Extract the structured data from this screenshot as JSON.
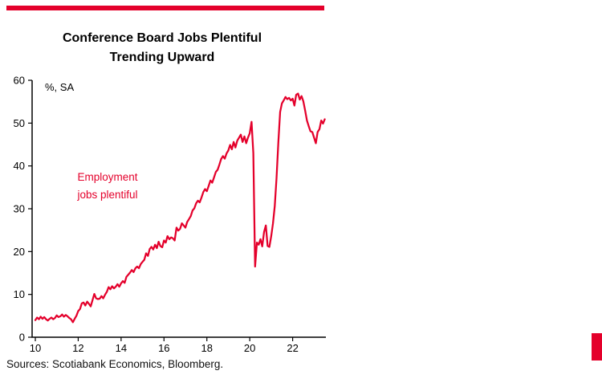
{
  "page": {
    "background": "#ffffff"
  },
  "header": {
    "accent_bar_color": "#e4002b"
  },
  "chart_data": {
    "type": "line",
    "title": "Conference Board Jobs Plentiful Trending Upward",
    "title_lines": [
      "Conference Board Jobs Plentiful",
      "Trending Upward"
    ],
    "unit_label": "%, SA",
    "annotation_lines": [
      "Employment",
      "jobs plentiful"
    ],
    "xlabel": "",
    "ylabel": "%, SA",
    "xlim": [
      9.85,
      23.55
    ],
    "ylim": [
      0,
      60
    ],
    "x_ticks": [
      10,
      12,
      14,
      16,
      18,
      20,
      22
    ],
    "y_ticks": [
      0,
      10,
      20,
      30,
      40,
      50,
      60
    ],
    "grid": false,
    "legend": "none",
    "line_color": "#e4002b",
    "series": [
      {
        "name": "Employment jobs plentiful",
        "x_start": 10.0,
        "x_step": 0.08333,
        "y": [
          4.0,
          4.6,
          4.2,
          4.8,
          4.3,
          4.7,
          4.2,
          3.9,
          4.3,
          4.6,
          4.2,
          4.5,
          5.1,
          4.7,
          4.9,
          5.3,
          4.8,
          5.2,
          4.9,
          4.5,
          4.2,
          3.5,
          4.3,
          5.0,
          6.1,
          6.6,
          7.9,
          8.1,
          7.4,
          8.3,
          7.8,
          7.2,
          8.6,
          10.1,
          9.1,
          8.9,
          9.0,
          9.6,
          9.1,
          9.9,
          10.6,
          11.7,
          11.2,
          11.9,
          11.4,
          11.8,
          12.4,
          11.8,
          12.6,
          13.1,
          12.7,
          14.1,
          14.6,
          15.1,
          15.7,
          15.2,
          16.1,
          16.5,
          16.1,
          17.1,
          17.6,
          18.1,
          19.6,
          19.0,
          20.6,
          21.1,
          20.5,
          21.6,
          20.8,
          22.3,
          21.3,
          21.0,
          22.6,
          22.1,
          23.6,
          22.9,
          23.3,
          23.1,
          22.6,
          25.6,
          24.9,
          25.3,
          26.6,
          26.1,
          25.6,
          26.9,
          27.6,
          28.3,
          29.6,
          30.1,
          31.3,
          31.9,
          31.5,
          32.6,
          33.9,
          34.6,
          34.1,
          35.3,
          36.6,
          36.1,
          37.3,
          38.6,
          39.1,
          40.3,
          41.6,
          42.3,
          41.7,
          42.9,
          43.6,
          44.9,
          43.9,
          45.6,
          44.3,
          45.9,
          46.6,
          47.3,
          45.6,
          46.9,
          45.3,
          46.6,
          47.6,
          50.3,
          43.0,
          16.5,
          22.1,
          21.6,
          22.9,
          21.2,
          24.6,
          26.1,
          21.3,
          21.1,
          23.6,
          26.6,
          30.6,
          37.1,
          45.6,
          52.6,
          54.6,
          55.3,
          56.1,
          55.6,
          55.9,
          55.3,
          55.7,
          54.1,
          56.6,
          56.9,
          55.5,
          56.3,
          55.1,
          52.9,
          50.6,
          49.3,
          48.1,
          47.9,
          46.6,
          45.3,
          47.9,
          48.6,
          50.6,
          49.9,
          50.9
        ]
      }
    ]
  },
  "footer": {
    "sources": "Sources: Scotiabank Economics, Bloomberg."
  },
  "decoration": {
    "adjacent_chart_color": "#e4002b"
  }
}
